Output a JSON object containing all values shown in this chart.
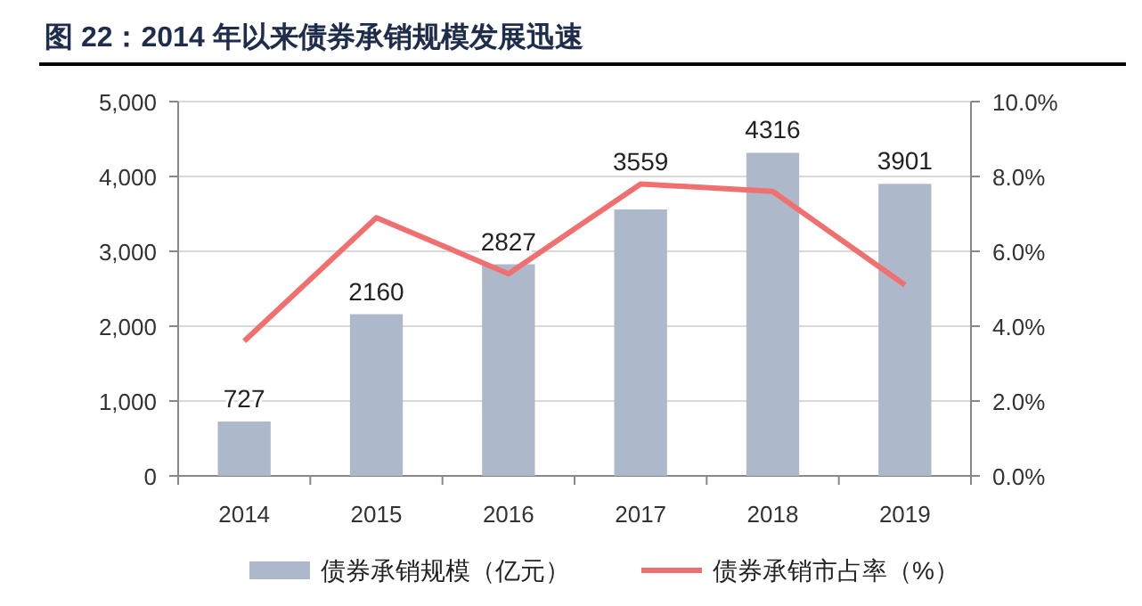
{
  "chart_data": {
    "type": "bar",
    "title": "图 22：2014 年以来债券承销规模发展迅速",
    "categories": [
      "2014",
      "2015",
      "2016",
      "2017",
      "2018",
      "2019"
    ],
    "series": [
      {
        "name": "债券承销规模（亿元）",
        "color": "#adb9ca",
        "values": [
          727,
          2160,
          2827,
          3559,
          4316,
          3901
        ],
        "value_labels": [
          "727",
          "2160",
          "2827",
          "3559",
          "4316",
          "3901"
        ]
      },
      {
        "name": "债券承销市占率（%）",
        "type": "line",
        "axis": "y2",
        "color": "#f07070",
        "values": [
          3.6,
          6.9,
          5.4,
          7.8,
          7.6,
          5.1
        ]
      }
    ],
    "ylim": [
      0,
      5000
    ],
    "yticks": [
      0,
      {
        "value": 1000,
        "label": "1,000"
      },
      {
        "value": 2000,
        "label": "2,000"
      },
      {
        "value": 3000,
        "label": "3,000"
      },
      {
        "value": 4000,
        "label": "4,000"
      },
      {
        "value": 5000,
        "label": "5,000"
      }
    ],
    "y2lim": [
      0,
      10
    ],
    "y2ticks": [
      {
        "value": 0,
        "label": "0.0%"
      },
      {
        "value": 2,
        "label": "2.0%"
      },
      {
        "value": 4,
        "label": "4.0%"
      },
      {
        "value": 6,
        "label": "6.0%"
      },
      {
        "value": 8,
        "label": "8.0%"
      },
      {
        "value": 10,
        "label": "10.0%"
      }
    ],
    "grid": "y",
    "legend": "bottom"
  }
}
